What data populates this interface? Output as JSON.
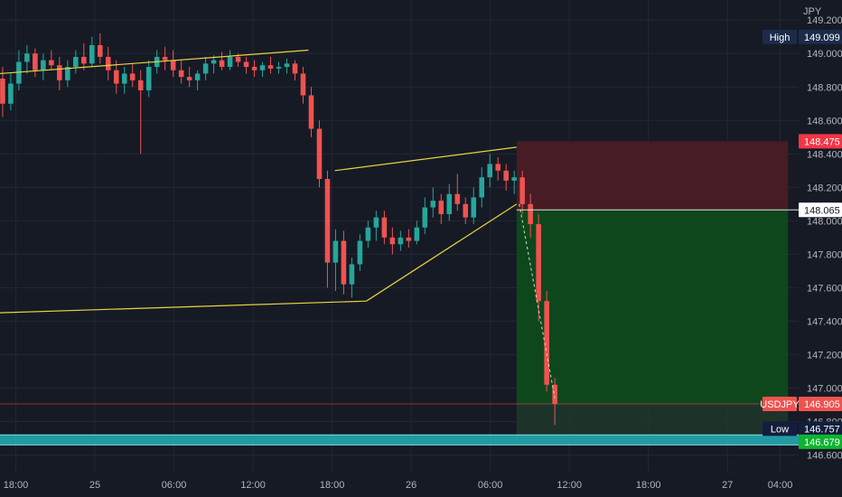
{
  "chart_data": {
    "type": "candlestick",
    "symbol": "USDJPY",
    "currency": "JPY",
    "grid": true,
    "ylim": [
      146.5,
      149.32
    ],
    "y_ticks": [
      "149.200",
      "149.000",
      "148.800",
      "148.600",
      "148.400",
      "148.200",
      "148.000",
      "147.800",
      "147.600",
      "147.400",
      "147.200",
      "147.000",
      "146.800",
      "146.600"
    ],
    "y_tick_values": [
      149.2,
      149.0,
      148.8,
      148.6,
      148.4,
      148.2,
      148.0,
      147.8,
      147.6,
      147.4,
      147.2,
      147.0,
      146.8,
      146.6
    ],
    "x_ticks": [
      "18:00",
      "25",
      "06:00",
      "12:00",
      "18:00",
      "26",
      "06:00",
      "12:00",
      "18:00",
      "27",
      "04:00"
    ],
    "x_tick_hours": [
      -6,
      0,
      6,
      12,
      18,
      24,
      30,
      36,
      42,
      48,
      52
    ],
    "hour_range": [
      -7.2,
      53.4
    ],
    "candles_ohlc": [
      [
        148.85,
        148.92,
        148.62,
        148.7
      ],
      [
        148.7,
        148.88,
        148.66,
        148.82
      ],
      [
        148.82,
        149.02,
        148.78,
        148.95
      ],
      [
        148.95,
        149.05,
        148.88,
        149.0
      ],
      [
        149.0,
        149.03,
        148.86,
        148.9
      ],
      [
        148.9,
        149.0,
        148.84,
        148.96
      ],
      [
        148.96,
        149.02,
        148.9,
        148.93
      ],
      [
        148.93,
        148.98,
        148.78,
        148.84
      ],
      [
        148.84,
        148.96,
        148.8,
        148.92
      ],
      [
        148.92,
        149.02,
        148.88,
        148.98
      ],
      [
        148.98,
        149.06,
        148.9,
        148.94
      ],
      [
        148.94,
        149.1,
        148.92,
        149.05
      ],
      [
        149.05,
        149.12,
        148.94,
        148.98
      ],
      [
        148.98,
        149.04,
        148.84,
        148.9
      ],
      [
        148.9,
        148.96,
        148.76,
        148.82
      ],
      [
        148.82,
        148.92,
        148.76,
        148.88
      ],
      [
        148.88,
        148.94,
        148.8,
        148.84
      ],
      [
        148.84,
        148.9,
        148.4,
        148.78
      ],
      [
        148.78,
        148.96,
        148.74,
        148.92
      ],
      [
        148.92,
        149.02,
        148.88,
        148.98
      ],
      [
        148.98,
        149.04,
        148.9,
        148.96
      ],
      [
        148.96,
        149.02,
        148.86,
        148.9
      ],
      [
        148.9,
        148.96,
        148.82,
        148.86
      ],
      [
        148.86,
        148.92,
        148.8,
        148.84
      ],
      [
        148.84,
        148.9,
        148.78,
        148.88
      ],
      [
        148.88,
        148.98,
        148.84,
        148.94
      ],
      [
        148.94,
        148.99,
        148.88,
        148.96
      ],
      [
        148.96,
        149.01,
        148.9,
        148.92
      ],
      [
        148.92,
        149.02,
        148.9,
        148.98
      ],
      [
        148.98,
        149.0,
        148.92,
        148.95
      ],
      [
        148.95,
        148.98,
        148.88,
        148.92
      ],
      [
        148.92,
        148.96,
        148.86,
        148.9
      ],
      [
        148.9,
        148.95,
        148.86,
        148.93
      ],
      [
        148.93,
        148.98,
        148.88,
        148.91
      ],
      [
        148.91,
        148.95,
        148.88,
        148.92
      ],
      [
        148.92,
        148.97,
        148.88,
        148.94
      ],
      [
        148.94,
        148.96,
        148.84,
        148.88
      ],
      [
        148.88,
        148.92,
        148.7,
        148.75
      ],
      [
        148.75,
        148.8,
        148.5,
        148.55
      ],
      [
        148.55,
        148.6,
        148.2,
        148.25
      ],
      [
        148.25,
        148.3,
        147.6,
        147.75
      ],
      [
        147.75,
        147.95,
        147.58,
        147.88
      ],
      [
        147.88,
        147.94,
        147.56,
        147.62
      ],
      [
        147.62,
        147.78,
        147.54,
        147.74
      ],
      [
        147.74,
        147.92,
        147.7,
        147.88
      ],
      [
        147.88,
        148.0,
        147.84,
        147.96
      ],
      [
        147.96,
        148.06,
        147.88,
        148.02
      ],
      [
        148.02,
        148.06,
        147.86,
        147.9
      ],
      [
        147.9,
        147.96,
        147.8,
        147.86
      ],
      [
        147.86,
        147.94,
        147.82,
        147.9
      ],
      [
        147.9,
        147.95,
        147.84,
        147.88
      ],
      [
        147.88,
        148.0,
        147.86,
        147.96
      ],
      [
        147.96,
        148.14,
        147.92,
        148.08
      ],
      [
        148.08,
        148.2,
        148.02,
        148.12
      ],
      [
        148.12,
        148.16,
        147.98,
        148.04
      ],
      [
        148.04,
        148.22,
        148.0,
        148.16
      ],
      [
        148.16,
        148.28,
        148.06,
        148.1
      ],
      [
        148.1,
        148.14,
        147.98,
        148.02
      ],
      [
        148.02,
        148.2,
        147.98,
        148.14
      ],
      [
        148.14,
        148.32,
        148.08,
        148.26
      ],
      [
        148.26,
        148.4,
        148.2,
        148.34
      ],
      [
        148.34,
        148.38,
        148.24,
        148.3
      ],
      [
        148.3,
        148.34,
        148.18,
        148.24
      ],
      [
        148.24,
        148.3,
        148.16,
        148.26
      ],
      [
        148.26,
        148.3,
        148.04,
        148.1
      ],
      [
        148.1,
        148.16,
        147.9,
        147.98
      ],
      [
        147.98,
        148.04,
        147.4,
        147.52
      ],
      [
        147.52,
        147.58,
        146.98,
        147.02
      ],
      [
        147.02,
        147.06,
        146.78,
        146.905
      ]
    ],
    "patterns": {
      "descending_line": [
        [
          -7.2,
          148.88
        ],
        [
          16.2,
          149.02
        ]
      ],
      "bottom_line": [
        [
          -7.2,
          147.45
        ],
        [
          20.6,
          147.52
        ]
      ],
      "wedge_upper": [
        [
          18.2,
          148.3
        ],
        [
          32.0,
          148.44
        ]
      ],
      "wedge_lower": [
        [
          20.6,
          147.52
        ],
        [
          32.0,
          148.1
        ]
      ],
      "projection": [
        [
          32.2,
          148.1
        ],
        [
          34.9,
          146.94
        ]
      ]
    },
    "position": {
      "x_start": 32.0,
      "x_end": 52.6,
      "stop": 148.475,
      "entry": 148.065,
      "target": 146.7
    },
    "levels": {
      "high": 149.099,
      "entry": 148.065,
      "stop": 148.475,
      "current": 146.905,
      "low": 146.757,
      "band_top": 146.72,
      "band_bottom": 146.66,
      "band_price": 146.679
    },
    "labels": {
      "currency": "JPY",
      "high_tag": "High",
      "high_value": "149.099",
      "stop_value": "148.475",
      "entry_value": "148.065",
      "symbol_tag": "USDJPY",
      "current_value": "146.905",
      "low_tag": "Low",
      "low_value": "146.757",
      "band_value": "146.679"
    },
    "colors": {
      "background": "#161a25",
      "grid": "#232734",
      "axis_text": "#b2b5be",
      "bull": "#26a69a",
      "bear": "#ef5350",
      "trendline": "#e8d33f",
      "stop_zone": "#4a1c25",
      "target_zone": "#0f4a1c",
      "band": "#22a8b0",
      "high_tag_bg": "#1c2b4a",
      "low_tag_bg": "#131e3d",
      "stop_tag_bg": "#f23645",
      "entry_tag_bg": "#ffffff",
      "symbol_tag_bg": "#ef5350",
      "band_tag_bg": "#0db430"
    }
  }
}
